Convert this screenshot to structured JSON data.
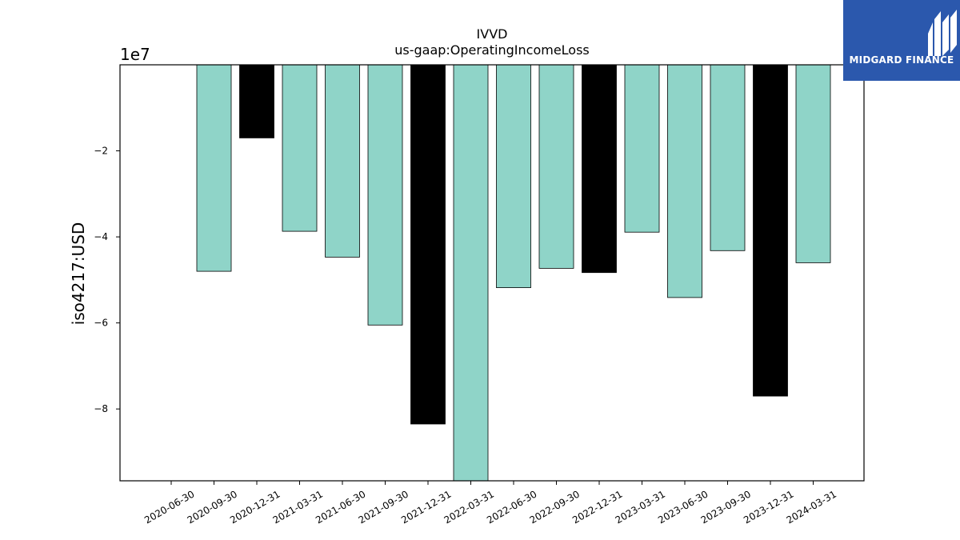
{
  "brand": {
    "name": "MIDGARD FINANCE",
    "background": "#2b58ad"
  },
  "chart_data": {
    "type": "bar",
    "title": "IVVD",
    "subtitle": "us-gaap:OperatingIncomeLoss",
    "ylabel": "iso4217:USD",
    "xlabel": "",
    "y_offset_label": "1e7",
    "categories": [
      "2020-06-30",
      "2020-09-30",
      "2020-12-31",
      "2021-03-31",
      "2021-06-30",
      "2021-09-30",
      "2021-12-31",
      "2022-03-31",
      "2022-06-30",
      "2022-09-30",
      "2022-12-31",
      "2023-03-31",
      "2023-06-30",
      "2023-09-30",
      "2023-12-31",
      "2024-03-31"
    ],
    "values": [
      null,
      -48000000,
      -17000000,
      -38700000,
      -44700000,
      -60500000,
      -83500000,
      -96700000,
      -51800000,
      -47300000,
      -48300000,
      -38900000,
      -54100000,
      -43200000,
      -77000000,
      -46000000
    ],
    "highlight": [
      false,
      false,
      true,
      false,
      false,
      false,
      true,
      false,
      false,
      false,
      true,
      false,
      false,
      false,
      true,
      false
    ],
    "colors": {
      "normal": "#8fd4c8",
      "highlight": "#000000",
      "edge": "#000000"
    },
    "ylim": [
      -96700000,
      0
    ],
    "yticks": [
      -20000000,
      -40000000,
      -60000000,
      -80000000
    ],
    "ytick_labels": [
      "−2",
      "−4",
      "−6",
      "−8"
    ],
    "grid": false
  }
}
